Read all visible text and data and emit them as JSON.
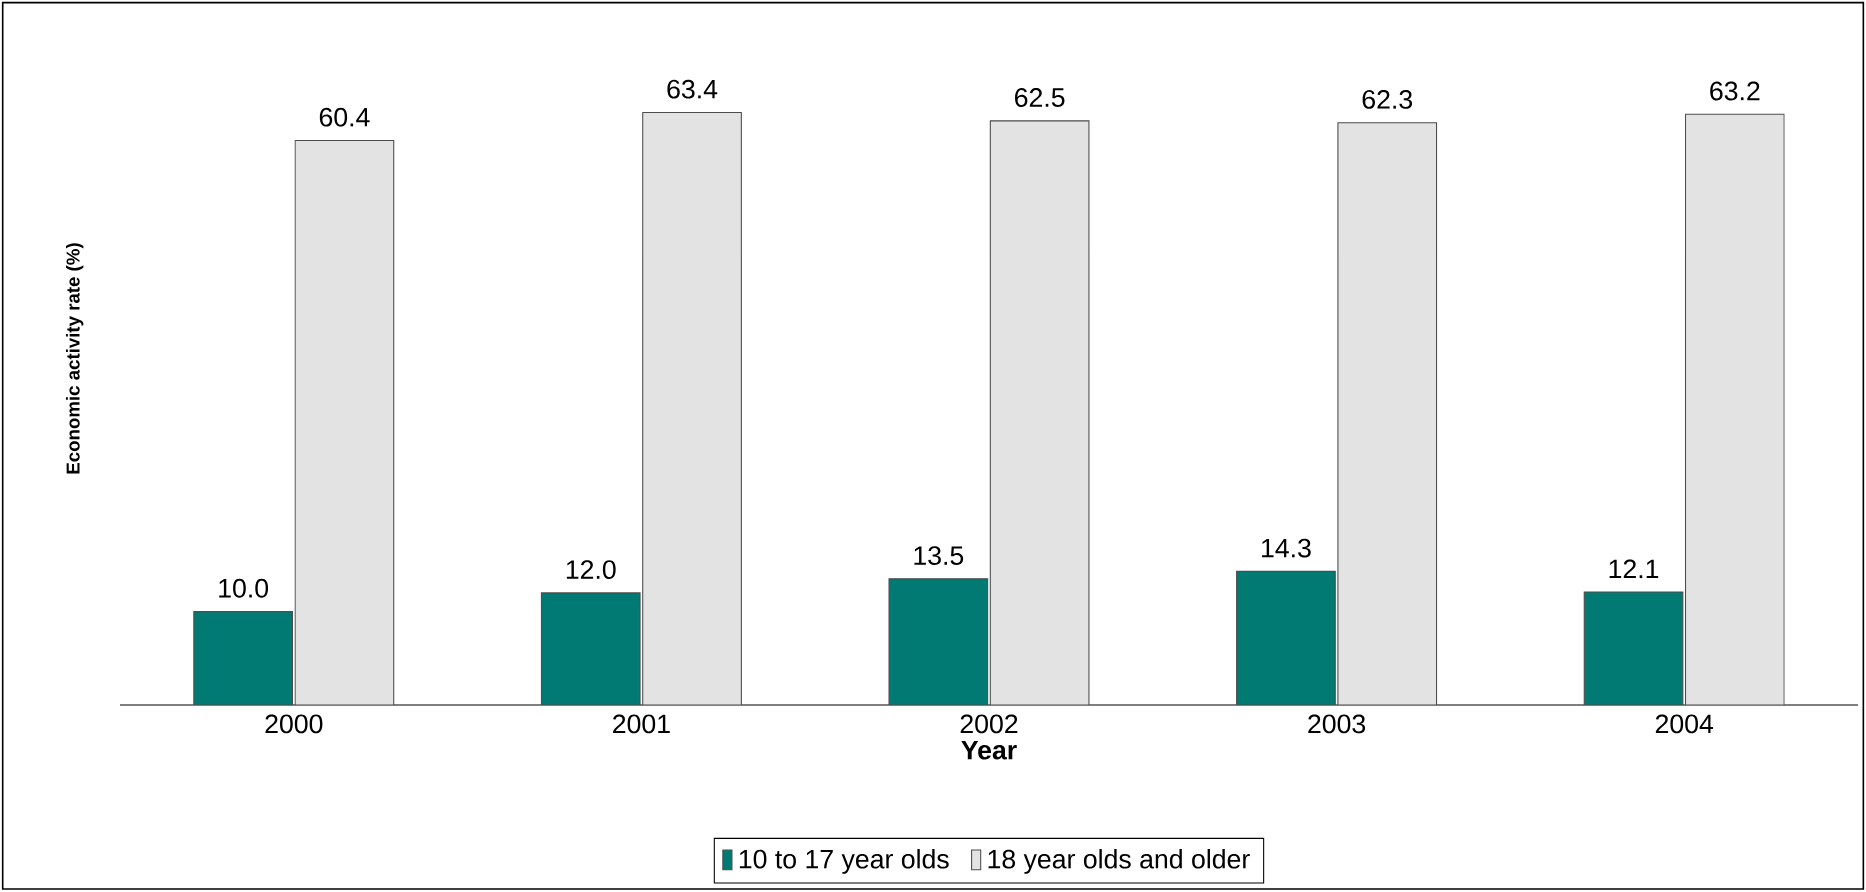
{
  "chart_data": {
    "type": "bar",
    "xlabel": "Year",
    "ylabel": "Economic activity rate (%)",
    "categories": [
      "2000",
      "2001",
      "2002",
      "2003",
      "2004"
    ],
    "series": [
      {
        "name": "10 to 17 year olds",
        "color": "#007a73",
        "values": [
          10.0,
          12.0,
          13.5,
          14.3,
          12.1
        ],
        "value_labels": [
          "10.0",
          "12.0",
          "13.5",
          "14.3",
          "12.1"
        ]
      },
      {
        "name": "18 year olds and older",
        "color": "#e3e3e3",
        "values": [
          60.4,
          63.4,
          62.5,
          62.3,
          63.2
        ],
        "value_labels": [
          "60.4",
          "63.4",
          "62.5",
          "62.3",
          "63.2"
        ]
      }
    ],
    "legend": "bottom"
  }
}
